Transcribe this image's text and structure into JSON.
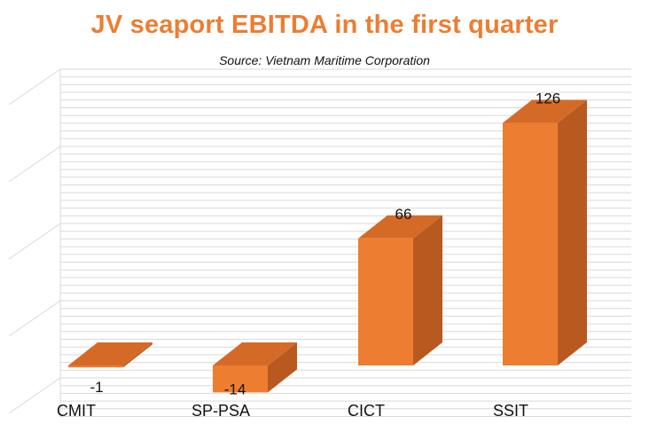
{
  "title": "JV seaport EBITDA in the first quarter",
  "subtitle": "Source: Vietnam Maritime Corporation",
  "colors": {
    "title": "#ED7D31",
    "bar_front": "#ED7D31",
    "bar_side": "#B85A20",
    "bar_top": "#D56A26",
    "grid": "#D9D9D9"
  },
  "chart_data": {
    "type": "bar",
    "style": "3d-column",
    "categories": [
      "CMIT",
      "SP-PSA",
      "CICT",
      "SSIT"
    ],
    "values": [
      -1,
      -14,
      66,
      126
    ],
    "data_labels": [
      "-1",
      "-14",
      "66",
      "126"
    ],
    "ylim": [
      -20,
      150
    ],
    "grid": true,
    "legend": "none"
  }
}
